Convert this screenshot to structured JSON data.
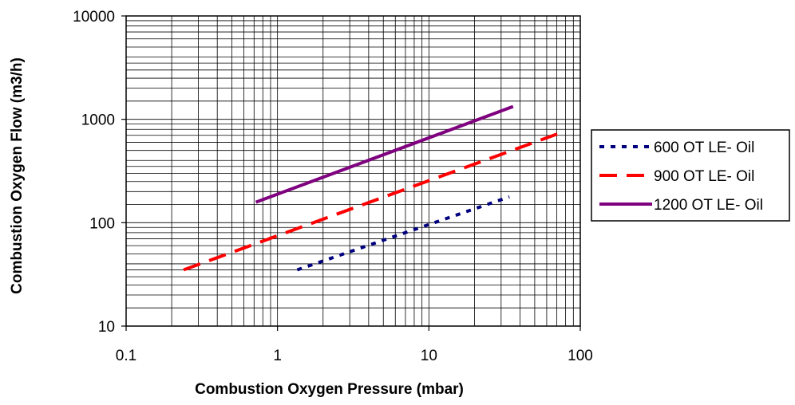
{
  "chart_data": {
    "type": "line",
    "x_scale": "log",
    "y_scale": "log",
    "xlim": [
      0.1,
      100
    ],
    "ylim": [
      10,
      10000
    ],
    "xlabel": "Combustion Oxygen Pressure (mbar)",
    "ylabel": "Combustion Oxygen Flow (m3/h)",
    "x_ticks": [
      "0.1",
      "1",
      "10",
      "100"
    ],
    "y_ticks": [
      "10",
      "100",
      "1000",
      "10000"
    ],
    "grid": true,
    "legend_position": "right",
    "series": [
      {
        "name": "600 OT LE- Oil",
        "color": "#00007f",
        "dash": "dotted",
        "x": [
          1.35,
          34
        ],
        "y": [
          35,
          178
        ]
      },
      {
        "name": "900 OT LE- Oil",
        "color": "#ff0000",
        "dash": "dashed",
        "x": [
          0.24,
          72
        ],
        "y": [
          35,
          730
        ]
      },
      {
        "name": "1200 OT LE- Oil",
        "color": "#7f007f",
        "dash": "solid",
        "x": [
          0.72,
          36
        ],
        "y": [
          158,
          1330
        ]
      }
    ]
  }
}
